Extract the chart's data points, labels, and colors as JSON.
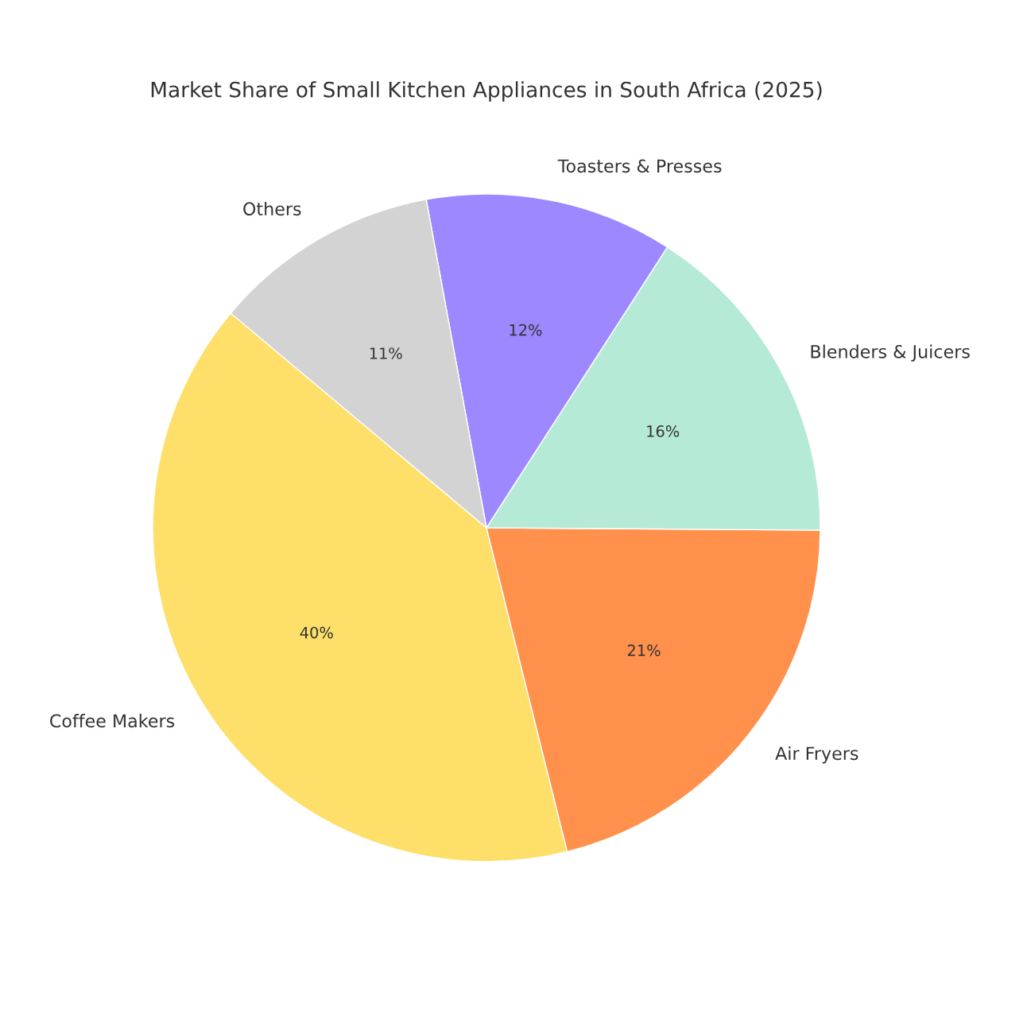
{
  "chart_data": {
    "type": "pie",
    "title": "Market Share of Small Kitchen Appliances in South Africa (2025)",
    "categories": [
      "Coffee Makers",
      "Air Fryers",
      "Blenders & Juicers",
      "Toasters & Presses",
      "Others"
    ],
    "values": [
      40,
      21,
      16,
      12,
      11
    ],
    "colors": [
      "#fddf69",
      "#ff914d",
      "#b5ead7",
      "#9d88ff",
      "#d3d3d3"
    ],
    "value_labels": [
      "40%",
      "21%",
      "16%",
      "12%",
      "11%"
    ]
  }
}
